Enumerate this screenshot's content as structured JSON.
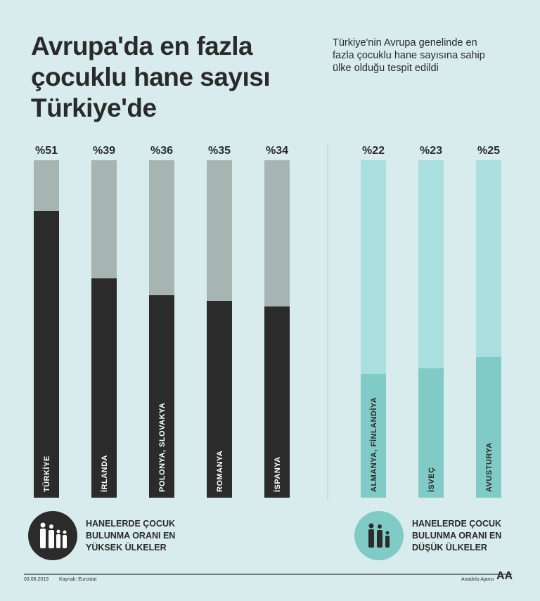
{
  "title": "Avrupa'da en fazla çocuklu hane sayısı Türkiye'de",
  "subtitle": "Türkiye'nin Avrupa genelinde en fazla çocuklu hane sayısına sahip ülke olduğu tespit edildi",
  "chart_data": {
    "type": "bar",
    "ylim": [
      0,
      60
    ],
    "groups": [
      {
        "name": "HANELERDE ÇOCUK BULUNMA ORANI EN YÜKSEK ÜLKELER",
        "categories": [
          "TÜRKİYE",
          "İRLANDA",
          "POLONYA, SLOVAKYA",
          "ROMANYA",
          "İSPANYA"
        ],
        "values": [
          51,
          39,
          36,
          35,
          34
        ],
        "labels": [
          "%51",
          "%39",
          "%36",
          "%35",
          "%34"
        ],
        "fill_color": "#2b2b2b",
        "track_color": "#a7b5b2"
      },
      {
        "name": "HANELERDE ÇOCUK BULUNMA ORANI EN DÜŞÜK ÜLKELER",
        "categories": [
          "ALMANYA, FİNLANDİYA",
          "İSVEÇ",
          "AVUSTURYA"
        ],
        "values": [
          22,
          23,
          25
        ],
        "labels": [
          "%22",
          "%23",
          "%25"
        ],
        "fill_color": "#80cbc6",
        "track_color": "#a9dfdf"
      }
    ]
  },
  "legend": {
    "high": "HANELERDE ÇOCUK BULUNMA ORANI EN YÜKSEK ÜLKELER",
    "low": "HANELERDE ÇOCUK BULUNMA ORANI EN DÜŞÜK ÜLKELER",
    "high_icon": "family-icon",
    "low_icon": "family-small-icon"
  },
  "footer": {
    "date": "03.06.2019",
    "source": "Kaynak: Eurostat",
    "agency": "Anadolu Ajansı",
    "logo": "AA"
  }
}
